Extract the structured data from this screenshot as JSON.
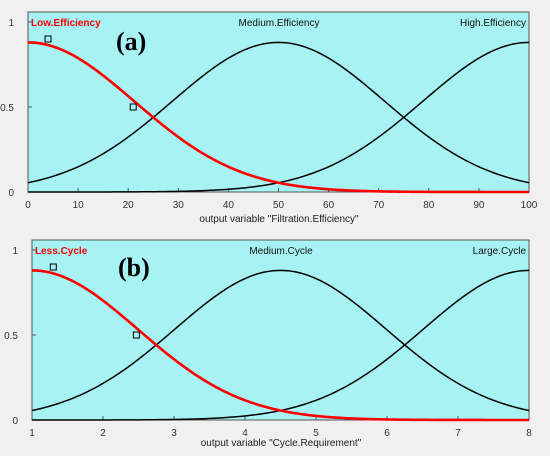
{
  "chart_data": [
    {
      "type": "line",
      "panel_label": "(a)",
      "xlabel": "output variable \"Filtration.Efficiency\"",
      "xlim": [
        0,
        100
      ],
      "ylim": [
        0,
        1
      ],
      "xticks": [
        0,
        10,
        20,
        30,
        40,
        50,
        60,
        70,
        80,
        90,
        100
      ],
      "yticks": [
        0,
        0.5,
        1
      ],
      "background": "#a7f2f2",
      "series": [
        {
          "name": "Low.Efficiency",
          "color": "#ff0000",
          "highlighted": true,
          "mf": "gaussian",
          "center": 0,
          "sigma": 21.2,
          "peak": 0.88
        },
        {
          "name": "Medium.Efficiency",
          "color": "#000000",
          "highlighted": false,
          "mf": "gaussian",
          "center": 50,
          "sigma": 21.2,
          "peak": 0.88
        },
        {
          "name": "High.Efficiency",
          "color": "#000000",
          "highlighted": false,
          "mf": "gaussian",
          "center": 100,
          "sigma": 21.2,
          "peak": 0.88
        }
      ],
      "markers": [
        {
          "x": 4,
          "y": 0.9
        },
        {
          "x": 21,
          "y": 0.5
        }
      ]
    },
    {
      "type": "line",
      "panel_label": "(b)",
      "xlabel": "output variable \"Cycle.Requirement\"",
      "xlim": [
        1,
        8
      ],
      "ylim": [
        0,
        1
      ],
      "xticks": [
        1,
        2,
        3,
        4,
        5,
        6,
        7,
        8
      ],
      "yticks": [
        0,
        0.5,
        1
      ],
      "background": "#a7f2f2",
      "series": [
        {
          "name": "Less.Cycle",
          "color": "#ff0000",
          "highlighted": true,
          "mf": "gaussian",
          "center": 1,
          "sigma": 1.49,
          "peak": 0.88
        },
        {
          "name": "Medium.Cycle",
          "color": "#000000",
          "highlighted": false,
          "mf": "gaussian",
          "center": 4.5,
          "sigma": 1.49,
          "peak": 0.88
        },
        {
          "name": "Large.Cycle",
          "color": "#000000",
          "highlighted": false,
          "mf": "gaussian",
          "center": 8,
          "sigma": 1.49,
          "peak": 0.88
        }
      ],
      "markers": [
        {
          "x": 1.3,
          "y": 0.9
        },
        {
          "x": 2.47,
          "y": 0.5
        }
      ]
    }
  ]
}
